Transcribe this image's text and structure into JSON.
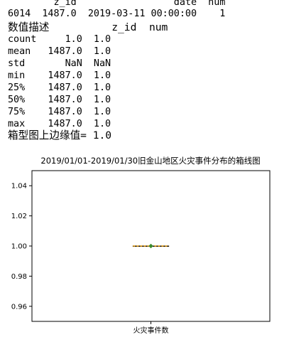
{
  "console": {
    "lines": [
      "        z_id                 date  num",
      "6014  1487.0  2019-03-11 00:00:00    1",
      "数值描述          z_id  num",
      "count     1.0  1.0",
      "mean   1487.0  1.0",
      "std       NaN  NaN",
      "min    1487.0  1.0",
      "25%    1487.0  1.0",
      "50%    1487.0  1.0",
      "75%    1487.0  1.0",
      "max    1487.0  1.0",
      "箱型图上边缘值= 1.0"
    ]
  },
  "chart_data": {
    "type": "box",
    "title": "2019/01/01-2019/01/30旧金山地区火灾事件分布的箱线图",
    "categories": [
      "火灾事件数"
    ],
    "series": [
      {
        "stats": {
          "min": 1.0,
          "q1": 1.0,
          "median": 1.0,
          "q3": 1.0,
          "max": 1.0,
          "mean": 1.0
        }
      }
    ],
    "ylim": [
      0.95,
      1.05
    ],
    "yticks": [
      "0.96",
      "0.98",
      "1.00",
      "1.02",
      "1.04"
    ],
    "grid": false,
    "colors": {
      "median": "#f5a200",
      "mean_marker": "#3a8a2a",
      "box": "#000000"
    }
  }
}
